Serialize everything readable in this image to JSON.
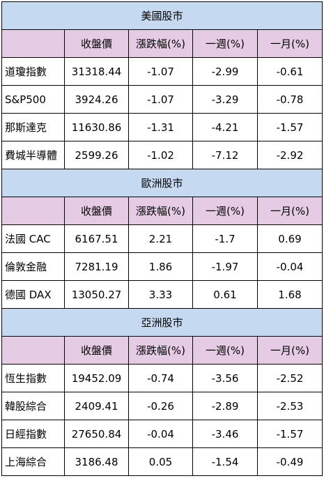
{
  "columns": [
    "收盤價",
    "漲跌幅(%)",
    "一週(%)",
    "一月(%)"
  ],
  "sections": [
    {
      "title": "美國股市",
      "rows": [
        {
          "name": "道瓊指數",
          "close": "31318.44",
          "change": "-1.07",
          "week": "-2.99",
          "month": "-0.61"
        },
        {
          "name": "S&P500",
          "close": "3924.26",
          "change": "-1.07",
          "week": "-3.29",
          "month": "-0.78"
        },
        {
          "name": "那斯達克",
          "close": "11630.86",
          "change": "-1.31",
          "week": "-4.21",
          "month": "-1.57"
        },
        {
          "name": "費城半導體",
          "close": "2599.26",
          "change": "-1.02",
          "week": "-7.12",
          "month": "-2.92"
        }
      ]
    },
    {
      "title": "歐洲股市",
      "rows": [
        {
          "name": "法國 CAC",
          "close": "6167.51",
          "change": "2.21",
          "week": "-1.7",
          "month": "0.69"
        },
        {
          "name": "倫敦金融",
          "close": "7281.19",
          "change": "1.86",
          "week": "-1.97",
          "month": "-0.04"
        },
        {
          "name": "德國 DAX",
          "close": "13050.27",
          "change": "3.33",
          "week": "0.61",
          "month": "1.68"
        }
      ]
    },
    {
      "title": "亞洲股市",
      "rows": [
        {
          "name": "恆生指數",
          "close": "19452.09",
          "change": "-0.74",
          "week": "-3.56",
          "month": "-2.52"
        },
        {
          "name": "韓股綜合",
          "close": "2409.41",
          "change": "-0.26",
          "week": "-2.89",
          "month": "-2.53"
        },
        {
          "name": "日經指數",
          "close": "27650.84",
          "change": "-0.04",
          "week": "-3.46",
          "month": "-1.57"
        },
        {
          "name": "上海綜合",
          "close": "3186.48",
          "change": "0.05",
          "week": "-1.54",
          "month": "-0.49"
        }
      ]
    }
  ],
  "colors": {
    "section_header_bg": "#c5d9f1",
    "column_header_bg": "#e5cce4",
    "border": "#000000"
  }
}
